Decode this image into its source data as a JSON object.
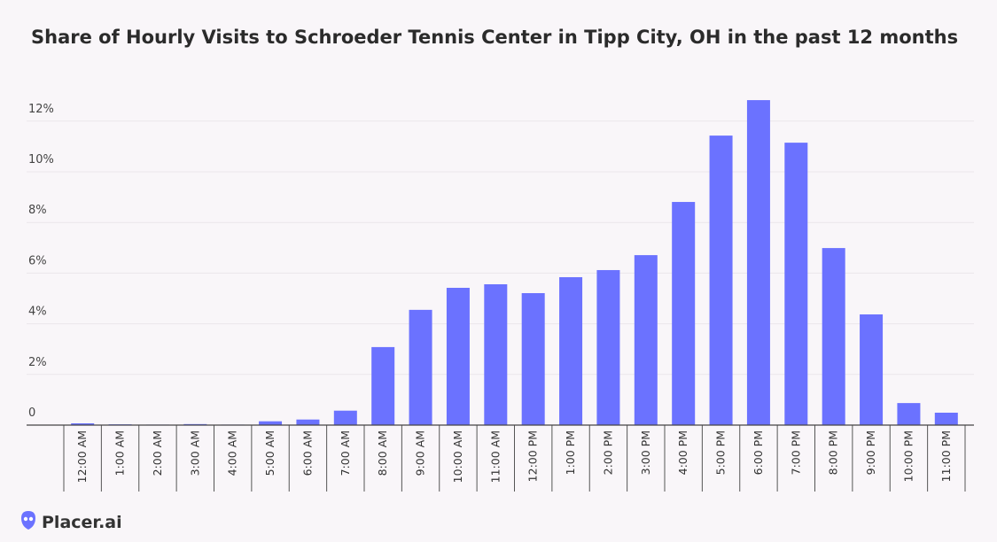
{
  "chart_data": {
    "type": "bar",
    "title": "Share of Hourly Visits to Schroeder Tennis Center in Tipp City, OH in the past 12 months",
    "categories": [
      "12:00 AM",
      "1:00 AM",
      "2:00 AM",
      "3:00 AM",
      "4:00 AM",
      "5:00 AM",
      "6:00 AM",
      "7:00 AM",
      "8:00 AM",
      "9:00 AM",
      "10:00 AM",
      "11:00 AM",
      "12:00 PM",
      "1:00 PM",
      "2:00 PM",
      "3:00 PM",
      "4:00 PM",
      "5:00 PM",
      "6:00 PM",
      "7:00 PM",
      "8:00 PM",
      "9:00 PM",
      "10:00 PM",
      "11:00 PM"
    ],
    "values": [
      0.07,
      0.03,
      0.02,
      0.04,
      0.02,
      0.15,
      0.22,
      0.57,
      3.08,
      4.55,
      5.42,
      5.56,
      5.21,
      5.84,
      6.12,
      6.71,
      8.81,
      11.43,
      12.83,
      11.15,
      6.99,
      4.37,
      0.87,
      0.49
    ],
    "color": "#6b72ff",
    "ylim": [
      0,
      13
    ],
    "yticks": [
      0,
      {
        "value": 2,
        "label": "2%"
      },
      {
        "value": 4,
        "label": "4%"
      },
      {
        "value": 6,
        "label": "6%"
      },
      {
        "value": 8,
        "label": "8%"
      },
      {
        "value": 10,
        "label": "10%"
      },
      {
        "value": 12,
        "label": "12%"
      }
    ],
    "grid": true
  },
  "brand": "Placer.ai"
}
